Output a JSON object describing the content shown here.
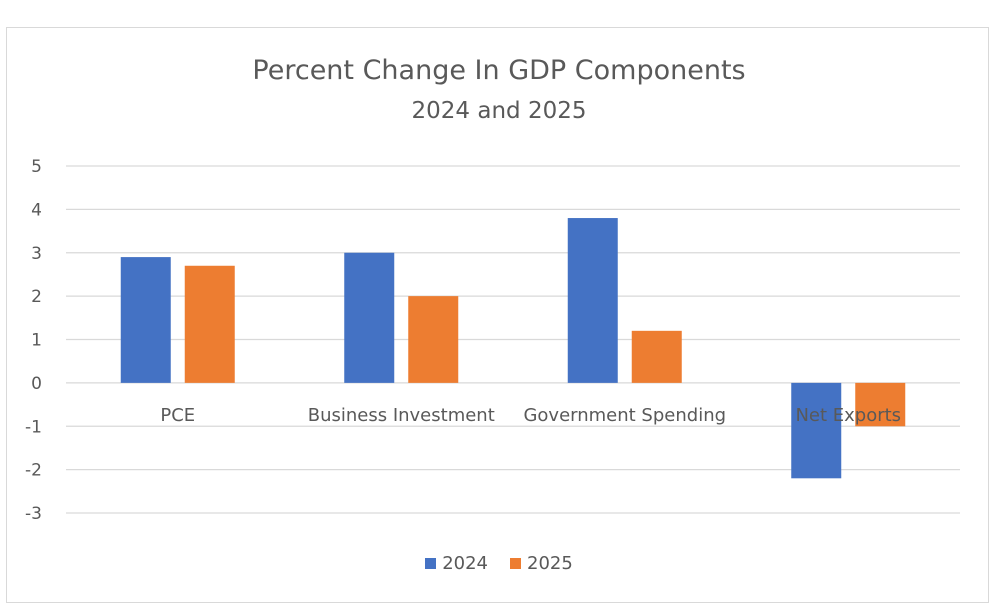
{
  "chart_data": {
    "type": "bar",
    "title": "Percent Change In GDP Components",
    "subtitle": "2024 and 2025",
    "xlabel": "",
    "ylabel": "",
    "categories": [
      "PCE",
      "Business Investment",
      "Government Spending",
      "Net Exports"
    ],
    "series": [
      {
        "name": "2024",
        "color": "#4472c4",
        "values": [
          2.9,
          3.0,
          3.8,
          -2.2
        ]
      },
      {
        "name": "2025",
        "color": "#ed7d31",
        "values": [
          2.7,
          2.0,
          1.2,
          -1.0
        ]
      }
    ],
    "ylim": [
      -3,
      5
    ],
    "yticks": [
      5,
      4,
      3,
      2,
      1,
      0,
      -1,
      -2,
      -3
    ],
    "grid": true,
    "legend_position": "bottom"
  }
}
